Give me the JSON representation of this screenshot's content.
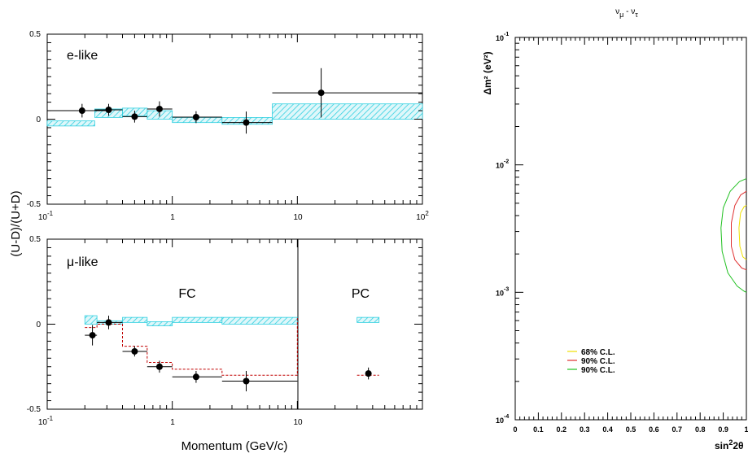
{
  "chart_data": [
    {
      "type": "scatter",
      "panel": "e-like",
      "label": "e-like",
      "xscale": "log",
      "xlim": [
        0.1,
        100
      ],
      "ylim": [
        -0.5,
        0.5
      ],
      "x_ticks": [
        "10",
        "-1",
        "1",
        "10",
        "10",
        "2"
      ],
      "y_ticks": [
        "0.5",
        "0",
        "-0.5"
      ],
      "points": [
        {
          "x": 0.19,
          "y": 0.05,
          "xerr": [
            0.1,
            0.3
          ],
          "yerr": 0.04
        },
        {
          "x": 0.31,
          "y": 0.055,
          "xerr": [
            0.24,
            0.4
          ],
          "yerr": 0.035
        },
        {
          "x": 0.5,
          "y": 0.015,
          "xerr": [
            0.4,
            0.63
          ],
          "yerr": 0.035
        },
        {
          "x": 0.79,
          "y": 0.06,
          "xerr": [
            0.63,
            1.0
          ],
          "yerr": 0.045
        },
        {
          "x": 1.55,
          "y": 0.012,
          "xerr": [
            1.0,
            2.5
          ],
          "yerr": 0.035
        },
        {
          "x": 3.9,
          "y": -0.02,
          "xerr": [
            2.5,
            6.3
          ],
          "yerr": 0.065
        },
        {
          "x": 15.5,
          "y": 0.155,
          "xerr": [
            6.3,
            100
          ],
          "yerr": 0.145
        }
      ],
      "mc_band": [
        {
          "x0": 0.1,
          "x1": 0.24,
          "y0": -0.04,
          "y1": -0.01
        },
        {
          "x0": 0.24,
          "x1": 0.4,
          "y0": 0.01,
          "y1": 0.06
        },
        {
          "x0": 0.4,
          "x1": 0.63,
          "y0": 0.02,
          "y1": 0.065
        },
        {
          "x0": 0.63,
          "x1": 1.0,
          "y0": 0.0,
          "y1": 0.05
        },
        {
          "x0": 1.0,
          "x1": 2.5,
          "y0": -0.02,
          "y1": 0.01
        },
        {
          "x0": 2.5,
          "x1": 6.3,
          "y0": -0.03,
          "y1": 0.01
        },
        {
          "x0": 6.3,
          "x1": 100,
          "y0": 0.0,
          "y1": 0.09
        }
      ]
    },
    {
      "type": "scatter",
      "panel": "mu-like",
      "label_greek": "μ",
      "label_suffix": "-like",
      "xscale": "log",
      "xlim": [
        0.1,
        100
      ],
      "ylim": [
        -0.5,
        0.5
      ],
      "x_ticks": [
        "10",
        "-1",
        "1",
        "10"
      ],
      "y_ticks": [
        "0.5",
        "0",
        "-0.5"
      ],
      "xlabel": "Momentum (GeV/c)",
      "regions": {
        "fc": "FC",
        "pc": "PC",
        "boundary_x": 10
      },
      "points": [
        {
          "x": 0.23,
          "y": -0.065,
          "xerr": [
            0.2,
            0.25
          ],
          "yerr": 0.06
        },
        {
          "x": 0.31,
          "y": 0.01,
          "xerr": [
            0.25,
            0.4
          ],
          "yerr": 0.04
        },
        {
          "x": 0.5,
          "y": -0.16,
          "xerr": [
            0.4,
            0.63
          ],
          "yerr": 0.03
        },
        {
          "x": 0.79,
          "y": -0.25,
          "xerr": [
            0.63,
            1.0
          ],
          "yerr": 0.035
        },
        {
          "x": 1.55,
          "y": -0.31,
          "xerr": [
            1.0,
            2.5
          ],
          "yerr": 0.035
        },
        {
          "x": 3.9,
          "y": -0.335,
          "xerr": [
            2.5,
            10
          ],
          "yerr": 0.06
        },
        {
          "x": 37,
          "y": -0.29,
          "xerr": [
            37,
            37
          ],
          "yerr": 0.035
        }
      ],
      "mc_band": [
        {
          "x0": 0.2,
          "x1": 0.25,
          "y0": 0.0,
          "y1": 0.05
        },
        {
          "x0": 0.25,
          "x1": 0.4,
          "y0": 0.0,
          "y1": 0.02
        },
        {
          "x0": 0.4,
          "x1": 0.63,
          "y0": 0.01,
          "y1": 0.04
        },
        {
          "x0": 0.63,
          "x1": 1.0,
          "y0": -0.01,
          "y1": 0.015
        },
        {
          "x0": 1.0,
          "x1": 2.5,
          "y0": 0.01,
          "y1": 0.04
        },
        {
          "x0": 2.5,
          "x1": 10,
          "y0": 0.0,
          "y1": 0.04
        },
        {
          "x0": 30,
          "x1": 45,
          "y0": 0.01,
          "y1": 0.04
        }
      ],
      "oscillation_histogram": [
        {
          "x0": 0.2,
          "x1": 0.25,
          "y": -0.02
        },
        {
          "x0": 0.25,
          "x1": 0.4,
          "y": 0.0
        },
        {
          "x0": 0.4,
          "x1": 0.63,
          "y": -0.13
        },
        {
          "x0": 0.63,
          "x1": 1.0,
          "y": -0.225
        },
        {
          "x0": 1.0,
          "x1": 2.5,
          "y": -0.265
        },
        {
          "x0": 2.5,
          "x1": 10,
          "y": -0.3
        },
        {
          "x0": 30,
          "x1": 45,
          "y": -0.3
        }
      ]
    },
    {
      "type": "line",
      "panel": "contour",
      "title_a": "ν",
      "title_sub_a": "μ",
      "title_mid": " - ",
      "title_b": "ν",
      "title_sub_b": "τ",
      "ylabel": "Δm² (eV²)",
      "xlabel_base": "sin",
      "xlabel_sup": "2",
      "xlabel_tail": "2θ",
      "yscale": "log",
      "xlim": [
        0,
        1
      ],
      "ylim": [
        0.0001,
        0.1
      ],
      "x_ticks": [
        "0",
        "0.1",
        "0.2",
        "0.3",
        "0.4",
        "0.5",
        "0.6",
        "0.7",
        "0.8",
        "0.9",
        "1"
      ],
      "y_ticks": [
        {
          "base": "10",
          "exp": "-1"
        },
        {
          "base": "10",
          "exp": "-2"
        },
        {
          "base": "10",
          "exp": "-3"
        },
        {
          "base": "10",
          "exp": "-4"
        }
      ],
      "legend": {
        "placement": "bottom-left",
        "entries": [
          {
            "name": "68% C.L.",
            "color": "#f0e000"
          },
          {
            "name": "90% C.L.",
            "color": "#e03030"
          },
          {
            "name": "90% C.L.",
            "color": "#20c020"
          }
        ]
      },
      "series": [
        {
          "color": "#f0e000",
          "points": [
            [
              1.0,
              0.0048
            ],
            [
              0.99,
              0.0047
            ],
            [
              0.975,
              0.0042
            ],
            [
              0.968,
              0.0032
            ],
            [
              0.972,
              0.0023
            ],
            [
              0.985,
              0.0019
            ],
            [
              1.0,
              0.0018
            ]
          ]
        },
        {
          "color": "#e03030",
          "points": [
            [
              1.0,
              0.0062
            ],
            [
              0.975,
              0.0058
            ],
            [
              0.95,
              0.0048
            ],
            [
              0.935,
              0.0035
            ],
            [
              0.935,
              0.0023
            ],
            [
              0.95,
              0.0018
            ],
            [
              0.98,
              0.00155
            ],
            [
              1.0,
              0.0015
            ]
          ]
        },
        {
          "color": "#20c020",
          "points": [
            [
              1.0,
              0.0078
            ],
            [
              0.97,
              0.0074
            ],
            [
              0.93,
              0.0062
            ],
            [
              0.9,
              0.0046
            ],
            [
              0.89,
              0.0032
            ],
            [
              0.895,
              0.0021
            ],
            [
              0.92,
              0.00142
            ],
            [
              0.96,
              0.00112
            ],
            [
              0.99,
              0.00102
            ],
            [
              1.0,
              0.001
            ]
          ]
        }
      ]
    }
  ],
  "shared_ylabel": "(U-D)/(U+D)",
  "colors": {
    "band": "#30d0e0",
    "oscillation": "#c00000",
    "data": "#000000"
  }
}
